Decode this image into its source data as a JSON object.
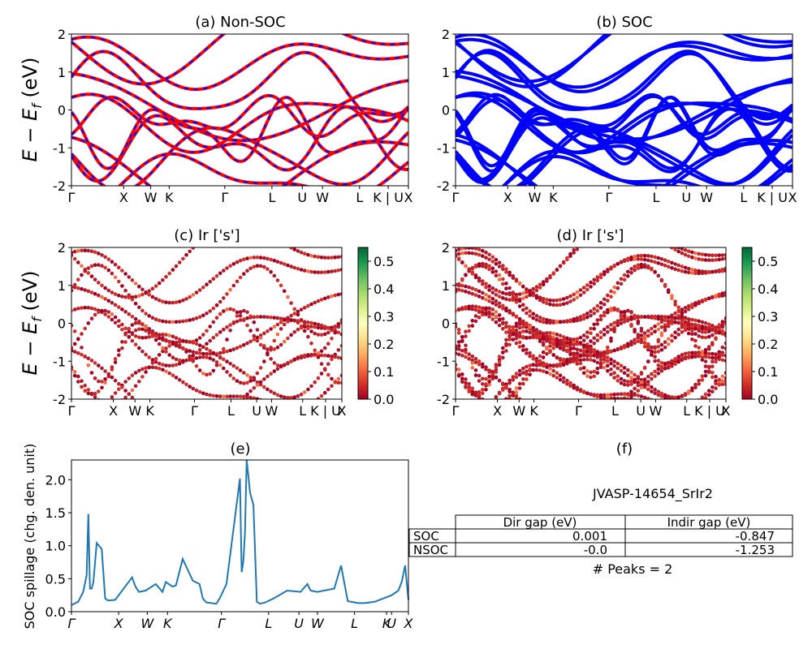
{
  "chart_data": [
    {
      "type": "line",
      "title": "(a) Non-SOC",
      "ylabel": "E - E_f (eV)",
      "ylim": [
        -2,
        2
      ],
      "yticks": [
        -2,
        -1,
        0,
        1,
        2
      ],
      "kpath_labels": [
        "Γ",
        "X",
        "W",
        "K",
        "Γ",
        "L",
        "U",
        "W",
        "L",
        "K | U",
        "X"
      ],
      "series_colors": [
        "#ff0000",
        "#0000ff"
      ],
      "note": "dense band structure; bands drawn red with blue dashed overlay"
    },
    {
      "type": "line",
      "title": "(b) SOC",
      "ylim": [
        -2,
        2
      ],
      "yticks": [
        -2,
        -1,
        0,
        1,
        2
      ],
      "kpath_labels": [
        "Γ",
        "X",
        "W",
        "K",
        "Γ",
        "L",
        "U",
        "W",
        "L",
        "K | U",
        "X"
      ],
      "series_colors": [
        "#0000ff"
      ]
    },
    {
      "type": "scatter",
      "title": "(c)  Ir ['s']",
      "ylabel": "E - E_f (eV)",
      "ylim": [
        -2,
        2
      ],
      "yticks": [
        -2,
        -1,
        0,
        1,
        2
      ],
      "kpath_labels": [
        "Γ",
        "X",
        "W",
        "K",
        "Γ",
        "L",
        "U",
        "W",
        "L",
        "K | U",
        "X"
      ],
      "colorbar": {
        "min": 0.0,
        "max": 0.55,
        "ticks": [
          "0.0",
          "0.1",
          "0.2",
          "0.3",
          "0.4",
          "0.5"
        ],
        "cmap": "RdYlGn"
      }
    },
    {
      "type": "scatter",
      "title": "(d) Ir ['s']",
      "ylim": [
        -2,
        2
      ],
      "yticks": [
        -2,
        -1,
        0,
        1,
        2
      ],
      "kpath_labels": [
        "Γ",
        "X",
        "W",
        "K",
        "Γ",
        "L",
        "U",
        "W",
        "L",
        "K | U",
        "X"
      ],
      "colorbar": {
        "min": 0.0,
        "max": 0.55,
        "ticks": [
          "0.0",
          "0.1",
          "0.2",
          "0.3",
          "0.4",
          "0.5"
        ],
        "cmap": "RdYlGn"
      }
    },
    {
      "type": "line",
      "title": "(e)",
      "ylabel": "SOC spillage (chg. den. unit)",
      "ylim": [
        0,
        2.3
      ],
      "yticks": [
        "0.0",
        "0.5",
        "1.0",
        "1.5",
        "2.0"
      ],
      "xlabels": [
        "Γ",
        "X",
        "W",
        "K",
        "Γ",
        "L",
        "U",
        "W",
        "L",
        "K",
        "U",
        "X"
      ],
      "color": "#1f77b4",
      "x": [
        0,
        0.02,
        0.035,
        0.045,
        0.05,
        0.055,
        0.06,
        0.065,
        0.075,
        0.09,
        0.1,
        0.105,
        0.11,
        0.13,
        0.18,
        0.19,
        0.2,
        0.22,
        0.25,
        0.27,
        0.28,
        0.3,
        0.31,
        0.33,
        0.36,
        0.38,
        0.39,
        0.4,
        0.43,
        0.44,
        0.46,
        0.5,
        0.505,
        0.51,
        0.515,
        0.52,
        0.525,
        0.53,
        0.54,
        0.55,
        0.56,
        0.575,
        0.6,
        0.64,
        0.68,
        0.7,
        0.71,
        0.73,
        0.78,
        0.8,
        0.82,
        0.85,
        0.87,
        0.9,
        0.95,
        0.97,
        0.98,
        0.99,
        1.0
      ],
      "values": [
        0.1,
        0.15,
        0.3,
        0.55,
        1.48,
        0.35,
        0.35,
        0.45,
        1.04,
        0.95,
        0.2,
        0.18,
        0.17,
        0.18,
        0.52,
        0.38,
        0.3,
        0.32,
        0.42,
        0.3,
        0.45,
        0.38,
        0.4,
        0.8,
        0.47,
        0.42,
        0.2,
        0.14,
        0.12,
        0.2,
        0.42,
        2.02,
        0.6,
        0.75,
        1.2,
        2.3,
        2.05,
        1.8,
        1.62,
        0.15,
        0.12,
        0.14,
        0.2,
        0.32,
        0.3,
        0.42,
        0.32,
        0.3,
        0.35,
        0.7,
        0.16,
        0.13,
        0.13,
        0.15,
        0.25,
        0.32,
        0.45,
        0.7,
        0.18
      ]
    },
    {
      "type": "table",
      "title": "(f)",
      "subtitle": "JVASP-14654_SrIr2",
      "columns": [
        "Dir gap (eV)",
        "Indir gap (eV)"
      ],
      "rows": [
        {
          "label": "SOC",
          "values": [
            "0.001",
            "-0.847"
          ]
        },
        {
          "label": "NSOC",
          "values": [
            "-0.0",
            "-1.253"
          ]
        }
      ],
      "footer": "# Peaks = 2"
    }
  ]
}
